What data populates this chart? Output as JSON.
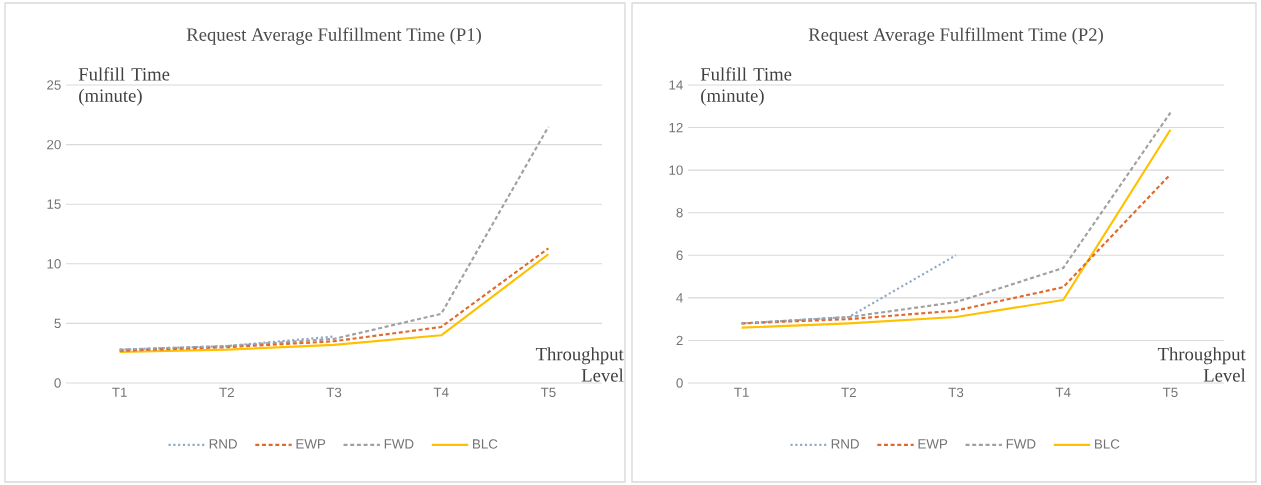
{
  "chart_data": [
    {
      "type": "line",
      "title": "Request Average Fulfillment Time (P1)",
      "ylabel": "Fulfill Time (minute)",
      "xlabel": "Throughput Level",
      "categories": [
        "T1",
        "T2",
        "T3",
        "T4",
        "T5"
      ],
      "ylim": [
        0,
        25
      ],
      "yticks": [
        0,
        5,
        10,
        15,
        20,
        25
      ],
      "grid": "y",
      "legend": "bottom",
      "series": [
        {
          "name": "RND",
          "color": "#8fa9c9",
          "line_style": "dotted",
          "values": [
            2.8,
            3.1,
            3.9,
            null,
            null
          ]
        },
        {
          "name": "EWP",
          "color": "#e06a2b",
          "line_style": "dashed",
          "values": [
            2.7,
            3.0,
            3.5,
            4.7,
            11.3
          ]
        },
        {
          "name": "FWD",
          "color": "#a0a0a0",
          "line_style": "dashed",
          "values": [
            2.8,
            3.1,
            3.7,
            5.8,
            21.5
          ]
        },
        {
          "name": "BLC",
          "color": "#ffc000",
          "line_style": "solid",
          "values": [
            2.6,
            2.8,
            3.2,
            4.0,
            10.8
          ]
        }
      ]
    },
    {
      "type": "line",
      "title": "Request Average Fulfillment Time (P2)",
      "ylabel": "Fulfill Time (minute)",
      "xlabel": "Throughput Level",
      "categories": [
        "T1",
        "T2",
        "T3",
        "T4",
        "T5"
      ],
      "ylim": [
        0,
        14
      ],
      "yticks": [
        0,
        2,
        4,
        6,
        8,
        10,
        12,
        14
      ],
      "grid": "y",
      "legend": "bottom",
      "series": [
        {
          "name": "RND",
          "color": "#8fa9c9",
          "line_style": "dotted",
          "values": [
            2.8,
            3.1,
            6.0,
            null,
            null
          ]
        },
        {
          "name": "EWP",
          "color": "#e06a2b",
          "line_style": "dashed",
          "values": [
            2.8,
            3.0,
            3.4,
            4.5,
            9.8
          ]
        },
        {
          "name": "FWD",
          "color": "#a0a0a0",
          "line_style": "dashed",
          "values": [
            2.8,
            3.1,
            3.8,
            5.4,
            12.7
          ]
        },
        {
          "name": "BLC",
          "color": "#ffc000",
          "line_style": "solid",
          "values": [
            2.6,
            2.8,
            3.1,
            3.9,
            11.9
          ]
        }
      ]
    }
  ]
}
